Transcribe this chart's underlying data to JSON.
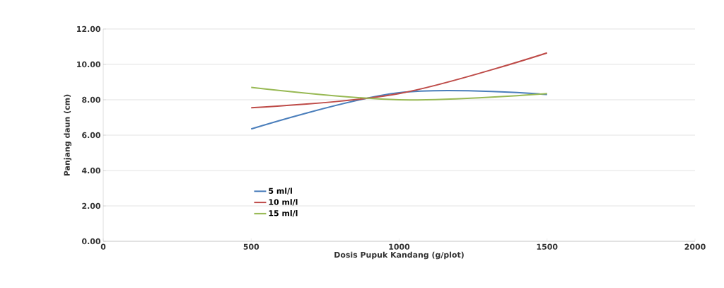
{
  "chart_data": {
    "type": "line",
    "xlabel": "Dosis Pupuk Kandang (g/plot)",
    "ylabel": "Panjang daun (cm)",
    "x": [
      500,
      1000,
      1500
    ],
    "series": [
      {
        "name": "5 ml/l",
        "color": "#4a7ebb",
        "values": [
          6.35,
          8.4,
          8.3
        ]
      },
      {
        "name": "10 ml/l",
        "color": "#be4b48",
        "values": [
          7.55,
          8.35,
          10.65
        ]
      },
      {
        "name": "15 ml/l",
        "color": "#98b954",
        "values": [
          8.7,
          8.0,
          8.35
        ]
      }
    ],
    "xlim": [
      0,
      2000
    ],
    "xticks": [
      0,
      500,
      1000,
      1500,
      2000
    ],
    "ylim": [
      0,
      12
    ],
    "yticks": [
      {
        "value": 0,
        "label": "0.00"
      },
      {
        "value": 2,
        "label": "2.00"
      },
      {
        "value": 4,
        "label": "4.00"
      },
      {
        "value": 6,
        "label": "6.00"
      },
      {
        "value": 8,
        "label": "8.00"
      },
      {
        "value": 10,
        "label": "10.00"
      },
      {
        "value": 12,
        "label": "12.00"
      }
    ],
    "grid": "y",
    "legend": "bottom left",
    "marker": "none",
    "line_style": "solid"
  }
}
